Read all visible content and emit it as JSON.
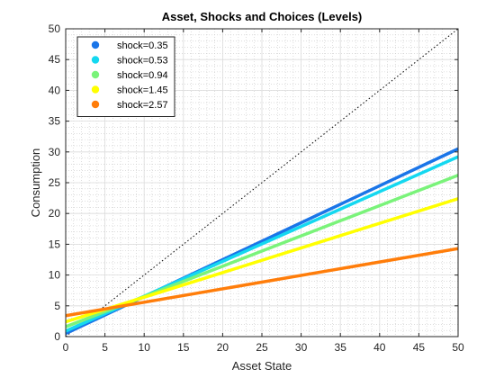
{
  "chart_data": {
    "type": "line",
    "title": "Asset, Shocks and Choices (Levels)",
    "xlabel": "Asset State",
    "ylabel": "Consumption",
    "xlim": [
      0,
      50
    ],
    "ylim": [
      0,
      50
    ],
    "xticks": [
      0,
      5,
      10,
      15,
      20,
      25,
      30,
      35,
      40,
      45,
      50
    ],
    "yticks": [
      0,
      5,
      10,
      15,
      20,
      25,
      30,
      35,
      40,
      45,
      50
    ],
    "grid": true,
    "minor_grid": true,
    "legend_position": "top-left",
    "reference_line": {
      "style": "dotted",
      "color": "#000000",
      "x": [
        0,
        50
      ],
      "y": [
        0,
        50
      ]
    },
    "series": [
      {
        "name": "shock=0.35",
        "color": "#1a75e8",
        "x": [
          0,
          50
        ],
        "y": [
          0.5,
          30.5
        ]
      },
      {
        "name": "shock=0.53",
        "color": "#14d8f0",
        "x": [
          0,
          50
        ],
        "y": [
          0.9,
          29.2
        ]
      },
      {
        "name": "shock=0.94",
        "color": "#7af37a",
        "x": [
          0,
          50
        ],
        "y": [
          1.6,
          26.2
        ]
      },
      {
        "name": "shock=1.45",
        "color": "#ffff00",
        "x": [
          0,
          50
        ],
        "y": [
          2.4,
          22.4
        ]
      },
      {
        "name": "shock=2.57",
        "color": "#ff7d0a",
        "x": [
          0,
          50
        ],
        "y": [
          3.4,
          14.3
        ]
      }
    ]
  }
}
